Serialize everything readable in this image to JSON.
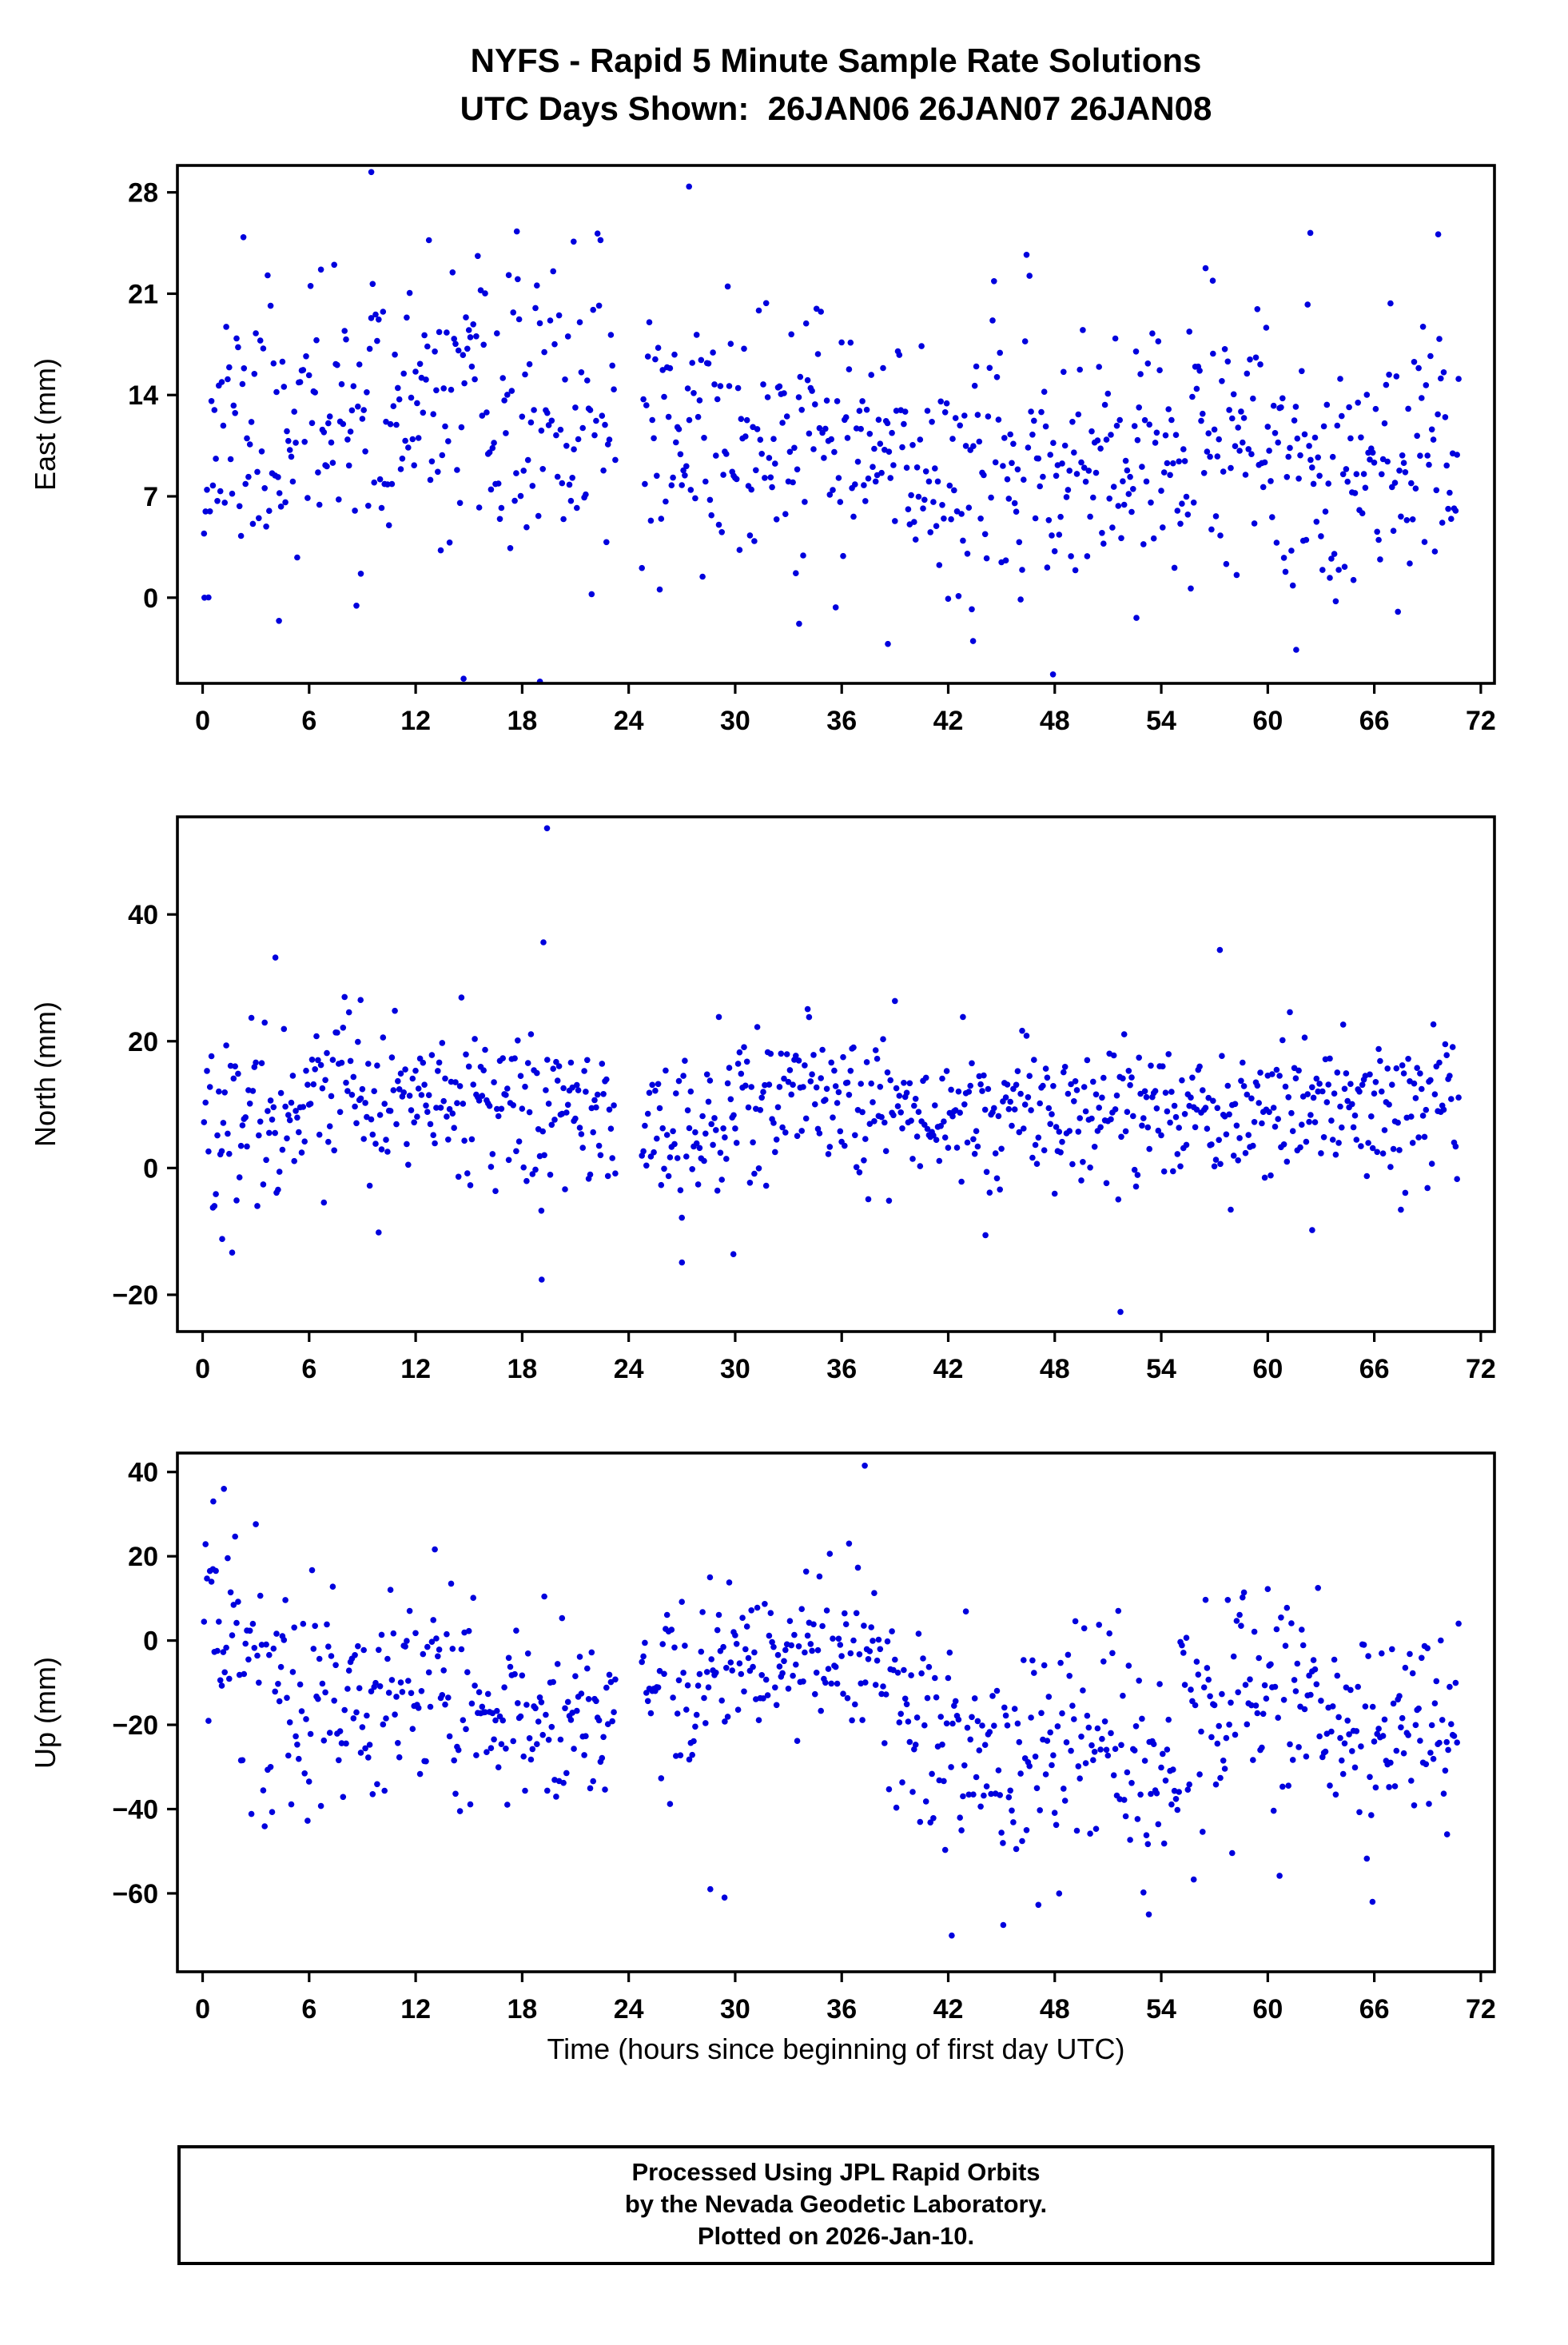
{
  "title": {
    "line1": "NYFS - Rapid 5 Minute Sample Rate Solutions",
    "line2": "UTC Days Shown:  26JAN06 26JAN07 26JAN08"
  },
  "xlabel": "Time (hours since beginning of first day UTC)",
  "footer": {
    "lines": [
      "Processed Using JPL Rapid Orbits",
      "by the Nevada Geodetic Laboratory.",
      "Plotted on 2026-Jan-10."
    ]
  },
  "point_color": "#0000dd",
  "chart_data": [
    {
      "type": "scatter",
      "ylabel": "East (mm)",
      "xlim": [
        -1.42,
        72.77
      ],
      "ylim": [
        -5.92,
        29.86
      ],
      "xticks": [
        0,
        6,
        12,
        18,
        24,
        30,
        36,
        42,
        48,
        54,
        60,
        66,
        72
      ],
      "yticks": [
        0,
        7,
        14,
        21,
        28
      ],
      "x_start": 0.08,
      "x_end": 70.8,
      "points_per_hour": 12,
      "gaps": [
        [
          23.3,
          24.7
        ]
      ],
      "seed": 11,
      "mean_profile": [
        [
          0,
          9.5
        ],
        [
          1,
          11.5
        ],
        [
          6,
          12.3
        ],
        [
          14,
          12.6
        ],
        [
          22,
          12.2
        ],
        [
          25,
          12.0
        ],
        [
          31,
          11.2
        ],
        [
          36,
          10.2
        ],
        [
          42,
          9.0
        ],
        [
          48,
          8.6
        ],
        [
          53,
          9.5
        ],
        [
          58,
          10.2
        ],
        [
          63,
          9.3
        ],
        [
          67,
          9.6
        ],
        [
          70.8,
          10.8
        ]
      ],
      "sd_profile": [
        [
          0,
          4.6
        ],
        [
          70.8,
          4.2
        ]
      ],
      "clip": [
        -5.2,
        29.0
      ],
      "outliers": [
        [
          9.5,
          29.4
        ],
        [
          27.4,
          28.4
        ],
        [
          2.3,
          24.9
        ],
        [
          17.7,
          25.3
        ],
        [
          20.9,
          24.6
        ],
        [
          62.4,
          25.2
        ],
        [
          69.6,
          25.1
        ],
        [
          56.9,
          21.9
        ],
        [
          14.7,
          -5.6
        ],
        [
          19.0,
          -5.8
        ],
        [
          47.9,
          -5.3
        ],
        [
          61.6,
          -3.6
        ],
        [
          43.4,
          -3.0
        ],
        [
          38.6,
          -3.2
        ],
        [
          52.6,
          -1.4
        ],
        [
          33.6,
          -1.8
        ],
        [
          4.3,
          -1.6
        ],
        [
          0.1,
          0.0
        ]
      ]
    },
    {
      "type": "scatter",
      "ylabel": "North (mm)",
      "xlim": [
        -1.42,
        72.77
      ],
      "ylim": [
        -25.8,
        55.4
      ],
      "xticks": [
        0,
        6,
        12,
        18,
        24,
        30,
        36,
        42,
        48,
        54,
        60,
        66,
        72
      ],
      "yticks": [
        -20,
        0,
        20,
        40
      ],
      "x_start": 0.08,
      "x_end": 70.8,
      "points_per_hour": 12,
      "gaps": [
        [
          23.3,
          24.7
        ]
      ],
      "seed": 22,
      "mean_profile": [
        [
          0,
          6.5
        ],
        [
          2,
          9.5
        ],
        [
          7,
          11.5
        ],
        [
          12,
          10.5
        ],
        [
          18,
          8.5
        ],
        [
          21,
          9.5
        ],
        [
          26,
          6.5
        ],
        [
          29,
          7.5
        ],
        [
          33,
          11.0
        ],
        [
          37,
          10.0
        ],
        [
          41,
          9.0
        ],
        [
          45,
          9.5
        ],
        [
          49,
          9.0
        ],
        [
          53,
          8.5
        ],
        [
          57,
          10.0
        ],
        [
          61,
          9.0
        ],
        [
          65,
          8.5
        ],
        [
          68,
          9.5
        ],
        [
          70.8,
          9.0
        ]
      ],
      "sd_profile": [
        [
          0,
          7.5
        ],
        [
          5,
          6.5
        ],
        [
          18,
          6.0
        ],
        [
          21,
          7.5
        ],
        [
          25,
          6.5
        ],
        [
          40,
          5.8
        ],
        [
          70.8,
          5.6
        ]
      ],
      "clip": [
        -15.5,
        27.5
      ],
      "outliers": [
        [
          19.4,
          53.6
        ],
        [
          19.2,
          35.6
        ],
        [
          57.3,
          34.4
        ],
        [
          4.1,
          33.2
        ],
        [
          8.9,
          26.5
        ],
        [
          51.7,
          -22.7
        ],
        [
          19.1,
          -17.6
        ],
        [
          27.0,
          -14.9
        ],
        [
          29.9,
          -13.6
        ],
        [
          1.1,
          -11.2
        ],
        [
          44.1,
          -10.6
        ],
        [
          62.5,
          -9.8
        ]
      ]
    },
    {
      "type": "scatter",
      "ylabel": "Up (mm)",
      "xlim": [
        -1.42,
        72.77
      ],
      "ylim": [
        -78.6,
        44.5
      ],
      "xticks": [
        0,
        6,
        12,
        18,
        24,
        30,
        36,
        42,
        48,
        54,
        60,
        66,
        72
      ],
      "yticks": [
        -60,
        -40,
        -20,
        0,
        20,
        40
      ],
      "x_start": 0.08,
      "x_end": 70.8,
      "points_per_hour": 12,
      "gaps": [
        [
          23.3,
          24.7
        ]
      ],
      "seed": 33,
      "mean_profile": [
        [
          0,
          6
        ],
        [
          1,
          3
        ],
        [
          3,
          -9
        ],
        [
          6,
          -17
        ],
        [
          9,
          -11
        ],
        [
          13,
          -14
        ],
        [
          17,
          -17
        ],
        [
          21,
          -17
        ],
        [
          25,
          -13
        ],
        [
          29,
          -8
        ],
        [
          32,
          -5
        ],
        [
          36,
          -3.5
        ],
        [
          38,
          -6
        ],
        [
          40,
          -18
        ],
        [
          42,
          -28
        ],
        [
          45,
          -31
        ],
        [
          48,
          -26
        ],
        [
          50,
          -22
        ],
        [
          53,
          -28
        ],
        [
          56,
          -20
        ],
        [
          58,
          -13
        ],
        [
          61,
          -14
        ],
        [
          64,
          -19
        ],
        [
          66,
          -24
        ],
        [
          69,
          -21
        ],
        [
          70.8,
          -16
        ]
      ],
      "sd_profile": [
        [
          0,
          18
        ],
        [
          2,
          16
        ],
        [
          5,
          13
        ],
        [
          9,
          12
        ],
        [
          14,
          13
        ],
        [
          20,
          12
        ],
        [
          25,
          11
        ],
        [
          30,
          10
        ],
        [
          33,
          8.5
        ],
        [
          37,
          8.5
        ],
        [
          40,
          12
        ],
        [
          44,
          15
        ],
        [
          50,
          14
        ],
        [
          56,
          14
        ],
        [
          62,
          13
        ],
        [
          70.8,
          12
        ]
      ],
      "clip": [
        -66,
        39
      ],
      "outliers": [
        [
          37.3,
          41.5
        ],
        [
          1.2,
          36.0
        ],
        [
          0.6,
          33.0
        ],
        [
          42.2,
          -70.0
        ],
        [
          45.1,
          -67.5
        ],
        [
          53.3,
          -65.0
        ],
        [
          29.4,
          -61.0
        ],
        [
          65.9,
          -62.0
        ],
        [
          28.6,
          -59.0
        ],
        [
          70.1,
          -46.0
        ]
      ]
    }
  ]
}
